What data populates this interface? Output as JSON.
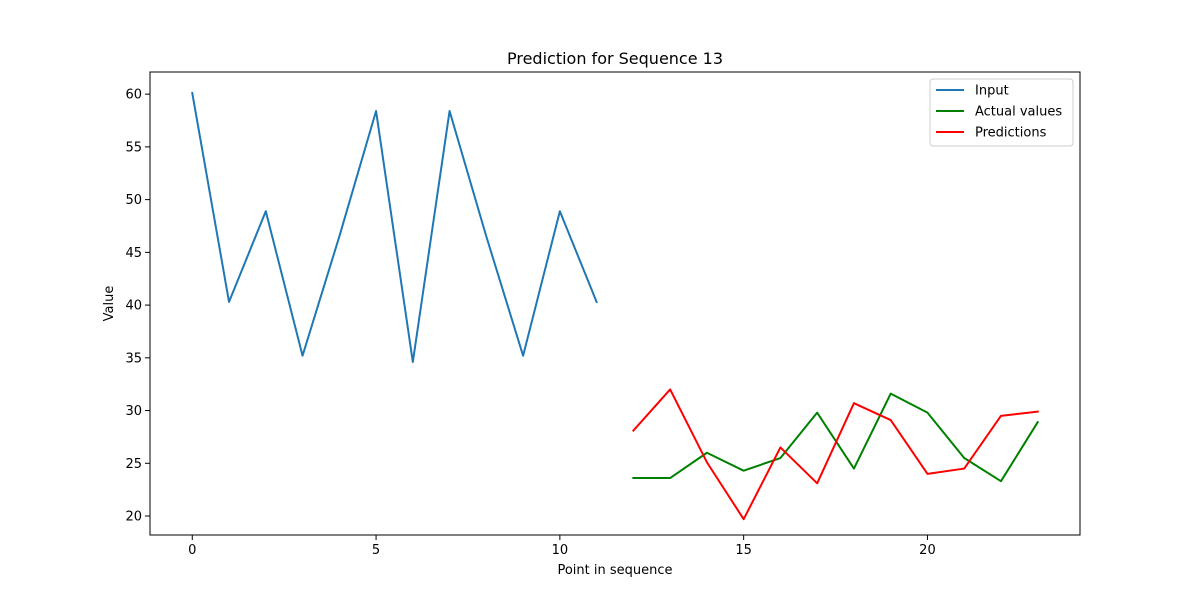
{
  "chart_data": {
    "type": "line",
    "title": "Prediction for Sequence 13",
    "xlabel": "Point in sequence",
    "ylabel": "Value",
    "xlim": [
      -1.15,
      24.15
    ],
    "ylim": [
      18.2,
      62.1
    ],
    "xticks": [
      0,
      5,
      10,
      15,
      20
    ],
    "yticks": [
      20,
      25,
      30,
      35,
      40,
      45,
      50,
      55,
      60
    ],
    "grid": false,
    "legend_position": "top-right",
    "series": [
      {
        "name": "Input",
        "color": "#1f77b4",
        "x": [
          0,
          1,
          2,
          3,
          4,
          5,
          6,
          7,
          8,
          9,
          10,
          11
        ],
        "y": [
          60.1,
          40.3,
          48.9,
          35.2,
          46.5,
          58.4,
          34.6,
          58.4,
          46.5,
          35.2,
          48.9,
          40.3
        ]
      },
      {
        "name": "Actual values",
        "color": "#008000",
        "x": [
          12,
          13,
          14,
          15,
          16,
          17,
          18,
          19,
          20,
          21,
          22,
          23
        ],
        "y": [
          23.6,
          23.6,
          26.0,
          24.3,
          25.5,
          29.8,
          24.5,
          31.6,
          29.8,
          25.5,
          23.3,
          28.9
        ]
      },
      {
        "name": "Predictions",
        "color": "#ff0000",
        "x": [
          12,
          13,
          14,
          15,
          16,
          17,
          18,
          19,
          20,
          21,
          22,
          23
        ],
        "y": [
          28.1,
          32.0,
          25.1,
          19.7,
          26.5,
          23.1,
          30.7,
          29.1,
          24.0,
          24.5,
          29.5,
          29.9
        ]
      }
    ]
  }
}
